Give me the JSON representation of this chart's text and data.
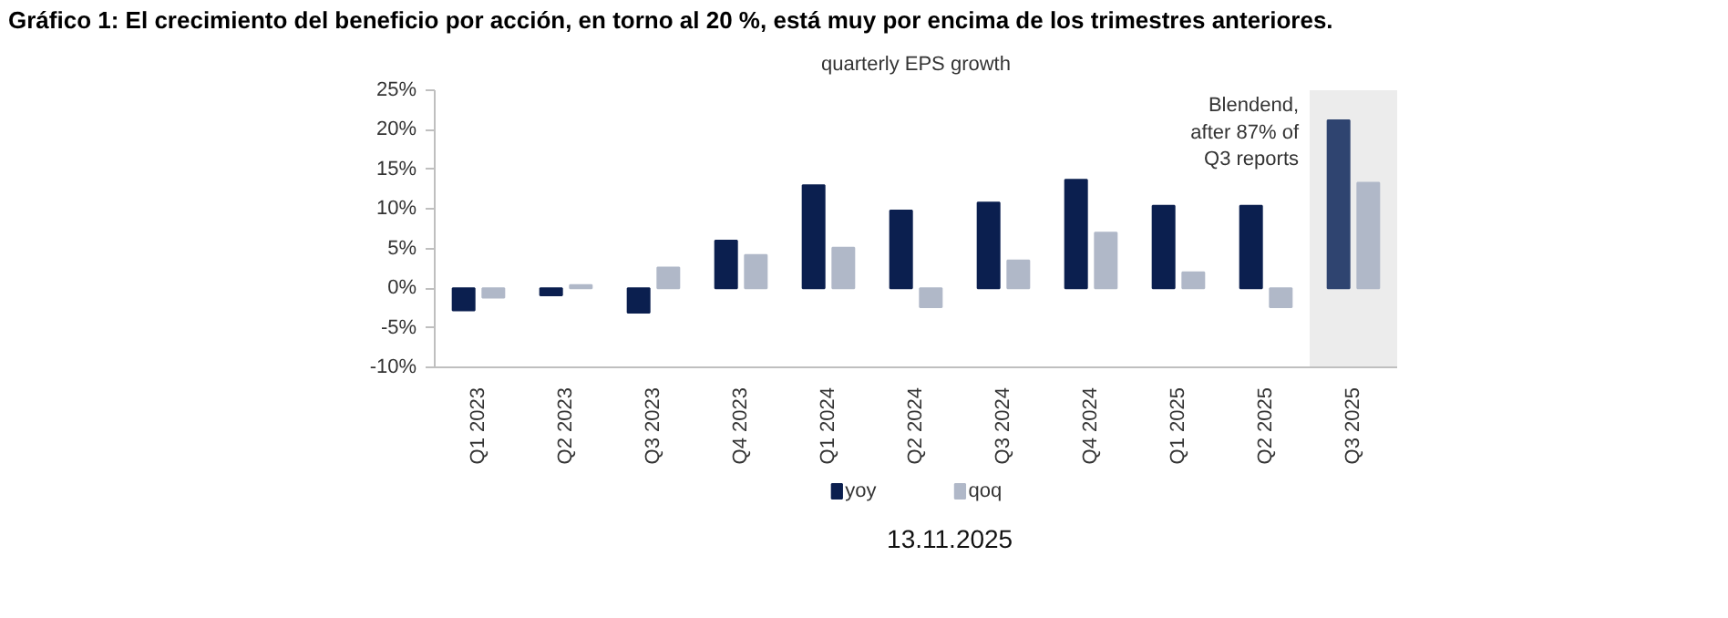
{
  "chart_data": {
    "type": "bar",
    "title": "Gráfico 1: El crecimiento del beneficio por acción, en torno al 20 %, está muy por encima de los trimestres anteriores.",
    "subtitle": "quarterly EPS growth",
    "categories": [
      "Q1 2023",
      "Q2 2023",
      "Q3 2023",
      "Q4 2023",
      "Q1 2024",
      "Q2 2024",
      "Q3 2024",
      "Q4 2024",
      "Q1 2025",
      "Q2 2025",
      "Q3 2025"
    ],
    "series": [
      {
        "name": "yoy",
        "color": "#0b1f4f",
        "colors": [
          "#0b1f4f",
          "#0b1f4f",
          "#0b1f4f",
          "#0b1f4f",
          "#0b1f4f",
          "#0b1f4f",
          "#0b1f4f",
          "#0b1f4f",
          "#0b1f4f",
          "#0b1f4f",
          "#2f4470"
        ],
        "values": [
          -2.8,
          -0.9,
          -3.1,
          6.0,
          13.0,
          9.8,
          10.8,
          13.7,
          10.4,
          10.4,
          21.2
        ]
      },
      {
        "name": "qoq",
        "color": "#b0b8c8",
        "values": [
          -1.2,
          0.4,
          2.6,
          4.2,
          5.1,
          -2.4,
          3.5,
          7.0,
          2.0,
          -2.4,
          13.3
        ]
      }
    ],
    "ylim": [
      -10,
      25
    ],
    "yticks": [
      {
        "value": -10,
        "label": "-10%"
      },
      {
        "value": -5,
        "label": "-5%"
      },
      {
        "value": 0,
        "label": "0%"
      },
      {
        "value": 5,
        "label": "5%"
      },
      {
        "value": 10,
        "label": "10%"
      },
      {
        "value": 15,
        "label": "15%"
      },
      {
        "value": 20,
        "label": "20%"
      },
      {
        "value": 25,
        "label": "25%"
      }
    ],
    "bands": [
      {
        "axis": "x",
        "from": "Q3 2025",
        "to": "Q3 2025",
        "label": "Blendend,\nafter 87% of\nQ3 reports",
        "color": "#ececec"
      }
    ],
    "annotations": [
      "13.11.2025"
    ],
    "grid": false,
    "legend": "bottom"
  }
}
